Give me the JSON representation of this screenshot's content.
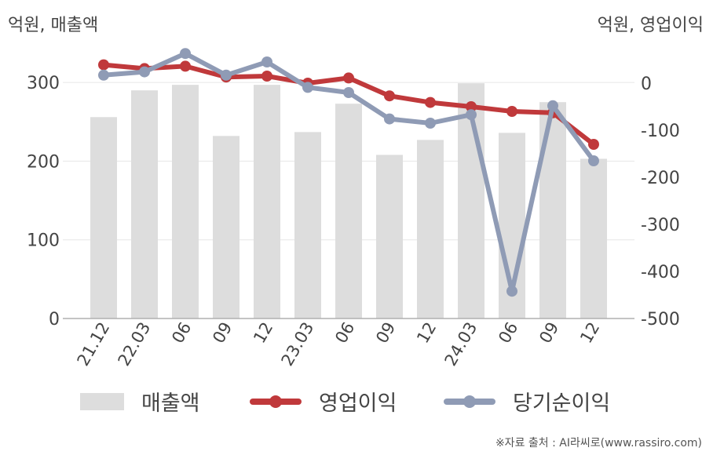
{
  "chart_data": {
    "type": "bar+line",
    "left_axis_unit": "억원, 매출액",
    "right_axis_unit": "억원, 영업이익",
    "categories": [
      "21.12",
      "22.03",
      "06",
      "09",
      "12",
      "23.03",
      "06",
      "09",
      "12",
      "24.03",
      "06",
      "09",
      "12"
    ],
    "left_ticks": [
      "0",
      "100",
      "200",
      "300"
    ],
    "right_ticks": [
      "0",
      "-100",
      "-200",
      "-300",
      "-400",
      "-500"
    ],
    "left_ylim": [
      0,
      350
    ],
    "right_ylim": [
      -500,
      85
    ],
    "series": [
      {
        "name": "매출액",
        "type": "bar",
        "axis": "left",
        "color": "#dddddd",
        "values": [
          256,
          290,
          297,
          232,
          297,
          237,
          273,
          208,
          227,
          299,
          236,
          275,
          203
        ]
      },
      {
        "name": "영업이익",
        "type": "line",
        "axis": "right",
        "color": "#c0393b",
        "values": [
          39,
          31,
          36,
          13,
          15,
          0,
          11,
          -27,
          -41,
          -50,
          -60,
          -63,
          -130
        ]
      },
      {
        "name": "당기순이익",
        "type": "line",
        "axis": "right",
        "color": "#8f9bb5",
        "values": [
          17,
          24,
          63,
          17,
          45,
          -9,
          -20,
          -76,
          -85,
          -67,
          -442,
          -48,
          -165
        ]
      }
    ]
  },
  "legend": {
    "items": [
      {
        "label": "매출액"
      },
      {
        "label": "영업이익"
      },
      {
        "label": "당기순이익"
      }
    ]
  },
  "source": "※자료 출처 : AI라씨로(www.rassiro.com)"
}
